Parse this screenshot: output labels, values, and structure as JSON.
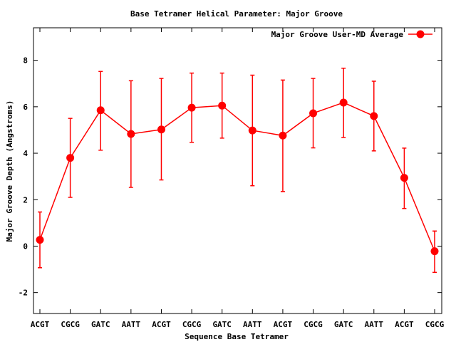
{
  "chart_data": {
    "type": "line",
    "title": "Base Tetramer Helical Parameter: Major Groove",
    "xlabel": "Sequence Base Tetramer",
    "ylabel": "Major Groove Depth (Angstroms)",
    "ylim": [
      -2.9,
      9.4
    ],
    "yticks": [
      -2,
      0,
      2,
      4,
      6,
      8
    ],
    "grid": false,
    "legend_position": "top-right",
    "categories": [
      "ACGT",
      "CGCG",
      "GATC",
      "AATT",
      "ACGT",
      "CGCG",
      "GATC",
      "AATT",
      "ACGT",
      "CGCG",
      "GATC",
      "AATT",
      "ACGT",
      "CGCG"
    ],
    "series": [
      {
        "name": "Major Groove User-MD Average",
        "color": "#ff0000",
        "values": [
          0.27,
          3.8,
          5.85,
          4.83,
          5.02,
          5.96,
          6.05,
          4.98,
          4.76,
          5.72,
          6.18,
          5.6,
          2.94,
          -0.22
        ],
        "err_low": [
          -0.93,
          2.1,
          4.13,
          2.53,
          2.85,
          4.47,
          4.65,
          2.6,
          2.35,
          4.23,
          4.68,
          4.1,
          1.62,
          -1.13
        ],
        "err_high": [
          1.47,
          5.5,
          7.52,
          7.12,
          7.22,
          7.45,
          7.45,
          7.36,
          7.15,
          7.22,
          7.66,
          7.1,
          4.22,
          0.65
        ]
      }
    ]
  }
}
